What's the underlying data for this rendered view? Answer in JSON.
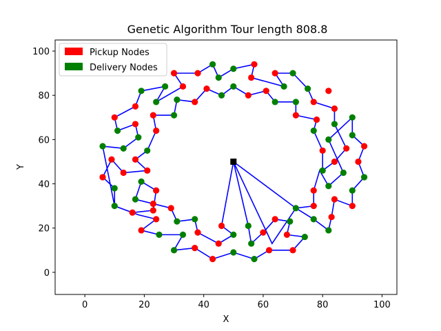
{
  "chart_data": {
    "type": "scatter",
    "title": "Genetic Algorithm  Tour length 808.8",
    "xlabel": "X",
    "ylabel": "Y",
    "xlim": [
      -10,
      105
    ],
    "ylim": [
      -10,
      105
    ],
    "xticks": [
      0,
      20,
      40,
      60,
      80,
      100
    ],
    "yticks": [
      0,
      20,
      40,
      60,
      80,
      100
    ],
    "legend": {
      "placement": "top-left",
      "entries": [
        {
          "label": "Pickup Nodes",
          "color": "#ff0000"
        },
        {
          "label": "Delivery Nodes",
          "color": "#008000"
        }
      ]
    },
    "colors": {
      "pickup": "#ff0000",
      "delivery": "#008000",
      "depot": "#000000",
      "route": "#0000ff"
    },
    "depot": [
      50,
      50
    ],
    "route": [
      [
        50,
        50
      ],
      [
        46,
        21
      ],
      [
        50,
        17
      ],
      [
        45,
        13
      ],
      [
        38,
        18
      ],
      [
        37,
        24
      ],
      [
        31,
        23
      ],
      [
        29,
        29
      ],
      [
        23,
        31
      ],
      [
        17,
        33
      ],
      [
        19,
        41
      ],
      [
        24,
        37
      ],
      [
        23,
        28
      ],
      [
        16,
        27
      ],
      [
        10,
        30
      ],
      [
        10,
        38
      ],
      [
        6,
        43
      ],
      [
        9,
        51
      ],
      [
        13,
        45
      ],
      [
        21,
        46
      ],
      [
        17,
        51
      ],
      [
        21,
        55
      ],
      [
        24,
        64
      ],
      [
        23,
        71
      ],
      [
        30,
        71
      ],
      [
        31,
        78
      ],
      [
        37,
        77
      ],
      [
        41,
        83
      ],
      [
        46,
        80
      ],
      [
        50,
        84
      ],
      [
        55,
        80
      ],
      [
        61,
        82
      ],
      [
        64,
        77
      ],
      [
        71,
        77
      ],
      [
        71,
        71
      ],
      [
        78,
        69
      ],
      [
        77,
        64
      ],
      [
        80,
        55
      ],
      [
        80,
        46
      ],
      [
        84,
        50
      ],
      [
        88,
        56
      ],
      [
        84,
        67
      ],
      [
        84,
        74
      ],
      [
        77,
        77
      ],
      [
        75,
        83
      ],
      [
        70,
        90
      ],
      [
        64,
        90
      ],
      [
        67,
        84
      ],
      [
        56,
        88
      ],
      [
        57,
        94
      ],
      [
        50,
        92
      ],
      [
        45,
        88
      ],
      [
        43,
        94
      ],
      [
        38,
        90
      ],
      [
        30,
        90
      ],
      [
        33,
        84
      ],
      [
        24,
        77
      ],
      [
        27,
        84
      ],
      [
        19,
        82
      ],
      [
        17,
        75
      ],
      [
        10,
        70
      ],
      [
        11,
        64
      ],
      [
        17,
        67
      ],
      [
        18,
        61
      ],
      [
        13,
        56
      ],
      [
        6,
        57
      ],
      [
        10,
        30
      ],
      [
        18,
        26
      ],
      [
        24,
        24
      ],
      [
        19,
        19
      ],
      [
        25,
        17
      ],
      [
        33,
        17
      ],
      [
        30,
        10
      ],
      [
        37,
        11
      ],
      [
        43,
        6
      ],
      [
        50,
        9
      ],
      [
        57,
        6
      ],
      [
        62,
        10
      ],
      [
        70,
        10
      ],
      [
        74,
        16
      ],
      [
        68,
        17
      ],
      [
        69,
        23
      ],
      [
        64,
        24
      ],
      [
        60,
        18
      ],
      [
        56,
        13
      ],
      [
        55,
        21
      ],
      [
        50,
        50
      ],
      [
        63,
        13
      ],
      [
        71,
        29
      ],
      [
        77,
        30
      ],
      [
        77,
        37
      ],
      [
        79,
        46
      ],
      [
        82,
        39
      ],
      [
        87,
        45
      ],
      [
        82,
        60
      ],
      [
        90,
        70
      ],
      [
        90,
        62
      ],
      [
        94,
        57
      ],
      [
        92,
        50
      ],
      [
        94,
        43
      ],
      [
        90,
        37
      ],
      [
        90,
        30
      ],
      [
        84,
        33
      ],
      [
        83,
        25
      ],
      [
        82,
        19
      ],
      [
        77,
        24
      ],
      [
        71,
        29
      ],
      [
        50,
        50
      ]
    ],
    "pickup_nodes": [
      [
        46,
        21
      ],
      [
        45,
        13
      ],
      [
        38,
        18
      ],
      [
        29,
        29
      ],
      [
        23,
        31
      ],
      [
        24,
        37
      ],
      [
        23,
        28
      ],
      [
        16,
        27
      ],
      [
        6,
        43
      ],
      [
        9,
        51
      ],
      [
        13,
        45
      ],
      [
        21,
        46
      ],
      [
        17,
        51
      ],
      [
        24,
        64
      ],
      [
        23,
        71
      ],
      [
        37,
        77
      ],
      [
        41,
        83
      ],
      [
        55,
        80
      ],
      [
        61,
        82
      ],
      [
        71,
        71
      ],
      [
        78,
        69
      ],
      [
        80,
        55
      ],
      [
        84,
        50
      ],
      [
        88,
        56
      ],
      [
        84,
        74
      ],
      [
        77,
        77
      ],
      [
        82,
        82
      ],
      [
        64,
        90
      ],
      [
        56,
        88
      ],
      [
        57,
        94
      ],
      [
        38,
        90
      ],
      [
        30,
        90
      ],
      [
        33,
        84
      ],
      [
        17,
        75
      ],
      [
        10,
        70
      ],
      [
        17,
        67
      ],
      [
        19,
        19
      ],
      [
        24,
        24
      ],
      [
        37,
        11
      ],
      [
        43,
        6
      ],
      [
        62,
        10
      ],
      [
        70,
        10
      ],
      [
        68,
        17
      ],
      [
        64,
        24
      ],
      [
        60,
        18
      ],
      [
        77,
        30
      ],
      [
        77,
        37
      ],
      [
        84,
        33
      ],
      [
        83,
        25
      ],
      [
        90,
        30
      ],
      [
        92,
        50
      ],
      [
        94,
        57
      ]
    ],
    "delivery_nodes": [
      [
        50,
        17
      ],
      [
        37,
        24
      ],
      [
        31,
        23
      ],
      [
        17,
        33
      ],
      [
        19,
        41
      ],
      [
        10,
        30
      ],
      [
        10,
        38
      ],
      [
        21,
        55
      ],
      [
        18,
        61
      ],
      [
        13,
        56
      ],
      [
        6,
        57
      ],
      [
        11,
        64
      ],
      [
        19,
        82
      ],
      [
        24,
        77
      ],
      [
        27,
        84
      ],
      [
        30,
        71
      ],
      [
        31,
        78
      ],
      [
        46,
        80
      ],
      [
        50,
        84
      ],
      [
        45,
        88
      ],
      [
        43,
        94
      ],
      [
        50,
        92
      ],
      [
        64,
        77
      ],
      [
        67,
        84
      ],
      [
        70,
        90
      ],
      [
        71,
        77
      ],
      [
        75,
        83
      ],
      [
        77,
        64
      ],
      [
        80,
        46
      ],
      [
        84,
        67
      ],
      [
        82,
        60
      ],
      [
        82,
        39
      ],
      [
        87,
        45
      ],
      [
        90,
        70
      ],
      [
        90,
        62
      ],
      [
        94,
        43
      ],
      [
        90,
        37
      ],
      [
        82,
        19
      ],
      [
        77,
        24
      ],
      [
        71,
        29
      ],
      [
        69,
        23
      ],
      [
        74,
        16
      ],
      [
        57,
        6
      ],
      [
        50,
        9
      ],
      [
        30,
        10
      ],
      [
        33,
        17
      ],
      [
        25,
        17
      ],
      [
        56,
        13
      ],
      [
        55,
        21
      ]
    ]
  }
}
